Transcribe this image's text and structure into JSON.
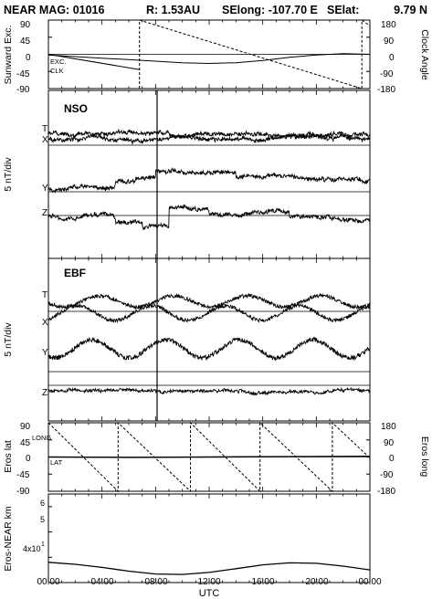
{
  "header": {
    "title": "NEAR MAG: 01016",
    "r": "R: 1.53AU",
    "selong": "SElong: -107.70 E",
    "selat": "SElat:",
    "selat_value": "9.79 N"
  },
  "chart_data": [
    {
      "type": "line",
      "panel": "sunward-exc-clock-angle",
      "ylabel": "Sunward Exc.",
      "ylabel_right": "Clock Angle",
      "ylim": [
        -90,
        90
      ],
      "ylim_right": [
        -180,
        180
      ],
      "yticks": [
        "90",
        "45",
        "0",
        "-45",
        "-90"
      ],
      "yticks_right": [
        "180",
        "90",
        "0",
        "-90",
        "-180"
      ],
      "series": [
        {
          "name": "EXC.",
          "style": "solid",
          "x": [
            0,
            2,
            4,
            6,
            8,
            10,
            12,
            14,
            16,
            18,
            20,
            22,
            24
          ],
          "y": [
            -2,
            -6,
            -10,
            -14,
            -18,
            -22,
            -24,
            -22,
            -16,
            -8,
            -2,
            2,
            0
          ]
        },
        {
          "name": "CLK",
          "style": "dashed",
          "x": [
            6.8,
            6.8,
            23.4,
            23.4,
            24
          ],
          "y": [
            -180,
            180,
            -180,
            180,
            150
          ]
        }
      ],
      "clk_initial": {
        "x": [
          0,
          6.8
        ],
        "y": [
          0,
          -80
        ]
      }
    },
    {
      "type": "line",
      "panel": "nso",
      "label": "NSO",
      "ylabel": "5 nT/div",
      "series": [
        {
          "name": "T",
          "trace_level": 0.72,
          "amplitude": 2
        },
        {
          "name": "X",
          "trace_level": 0.72,
          "amplitude": 2
        },
        {
          "name": "Y",
          "trace_level": 0.5,
          "amplitude": 3
        },
        {
          "name": "Z",
          "trace_level": 0.18,
          "amplitude": 3
        }
      ]
    },
    {
      "type": "line",
      "panel": "ebf",
      "label": "EBF",
      "ylabel": "5 nT/div",
      "series": [
        {
          "name": "T",
          "trace_level": 0.85,
          "amplitude": 3
        },
        {
          "name": "X",
          "trace_level": 0.65,
          "amplitude": 3
        },
        {
          "name": "Y",
          "trace_level": 0.5,
          "amplitude": 3
        },
        {
          "name": "Z",
          "trace_level": 0.17,
          "amplitude": 1
        }
      ]
    },
    {
      "type": "line",
      "panel": "eros-lat-long",
      "ylabel": "Eros lat",
      "ylabel_right": "Eros long",
      "ylim": [
        -90,
        90
      ],
      "ylim_right": [
        -180,
        180
      ],
      "yticks": [
        "90",
        "45",
        "0",
        "-45",
        "-90"
      ],
      "yticks_right": [
        "180",
        "90",
        "0",
        "-90",
        "-180"
      ],
      "series": [
        {
          "name": "LONG",
          "style": "dashed",
          "x": [
            0,
            5.2,
            5.2,
            10.6,
            10.6,
            15.8,
            15.8,
            21.2,
            21.2,
            24
          ],
          "y": [
            180,
            -180,
            180,
            -180,
            180,
            -180,
            180,
            -180,
            180,
            -5
          ]
        },
        {
          "name": "LAT",
          "style": "solid",
          "x": [
            0,
            6,
            12,
            18,
            24
          ],
          "y": [
            0,
            -1,
            0,
            1,
            2
          ]
        }
      ]
    },
    {
      "type": "line",
      "panel": "eros-near-km",
      "ylabel": "Eros-NEAR km",
      "ylim": [
        30,
        65
      ],
      "yticks": [
        "6",
        "5",
        "4x10",
        "3"
      ],
      "series": [
        {
          "name": "distance",
          "style": "solid",
          "x": [
            0,
            2,
            4,
            6,
            8,
            10,
            12,
            14,
            16,
            18,
            20,
            22,
            24
          ],
          "y": [
            38,
            37.2,
            36,
            34.5,
            33.4,
            33.2,
            34,
            35.5,
            37,
            37.8,
            37.6,
            36.5,
            35
          ]
        }
      ],
      "xticks": [
        "00:00",
        "04:00",
        "08:00",
        "12:00",
        "16:00",
        "20:00",
        "00:00"
      ],
      "xlabel": "UTC",
      "xlim": [
        0,
        24
      ]
    }
  ]
}
